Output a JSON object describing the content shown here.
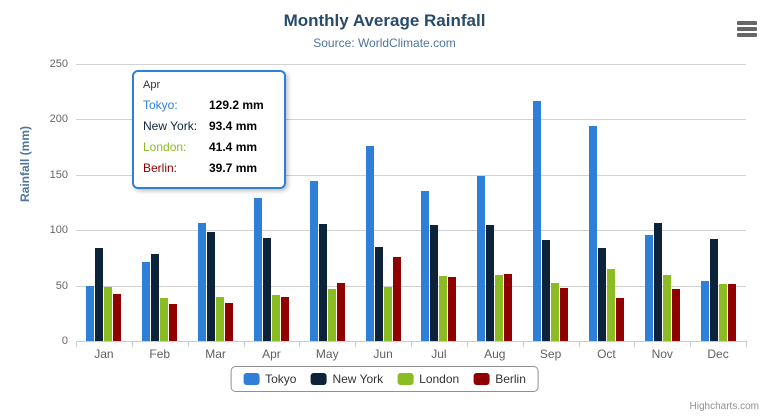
{
  "chart": {
    "title": "Monthly Average Rainfall",
    "subtitle": "Source: WorldClimate.com",
    "credits": "Highcharts.com",
    "export_icon": "hamburger-menu-icon"
  },
  "chart_data": {
    "type": "bar",
    "title": "Monthly Average Rainfall",
    "subtitle": "Source: WorldClimate.com",
    "categories": [
      "Jan",
      "Feb",
      "Mar",
      "Apr",
      "May",
      "Jun",
      "Jul",
      "Aug",
      "Sep",
      "Oct",
      "Nov",
      "Dec"
    ],
    "series": [
      {
        "name": "Tokyo",
        "color": "#2f7ed8",
        "values": [
          49.9,
          71.5,
          106.4,
          129.2,
          144.0,
          176.0,
          135.6,
          148.5,
          216.4,
          194.1,
          95.6,
          54.4
        ]
      },
      {
        "name": "New York",
        "color": "#0d233a",
        "values": [
          83.6,
          78.8,
          98.5,
          93.4,
          106.0,
          84.5,
          105.0,
          104.3,
          91.2,
          83.5,
          106.6,
          92.3
        ]
      },
      {
        "name": "London",
        "color": "#8bbc21",
        "values": [
          48.9,
          38.8,
          39.3,
          41.4,
          47.0,
          48.3,
          59.0,
          59.6,
          52.4,
          65.2,
          59.3,
          51.2
        ]
      },
      {
        "name": "Berlin",
        "color": "#910000",
        "values": [
          42.4,
          33.2,
          34.5,
          39.7,
          52.6,
          75.5,
          57.4,
          60.4,
          47.6,
          39.1,
          46.8,
          51.1
        ]
      }
    ],
    "xlabel": "",
    "ylabel": "Rainfall (mm)",
    "ylim": [
      0,
      250
    ],
    "yticks": [
      0,
      50,
      100,
      150,
      200,
      250
    ],
    "grid": true,
    "legend_position": "bottom"
  },
  "tooltip": {
    "header": "Apr",
    "rows": [
      {
        "label": "Tokyo:",
        "value": "129.2 mm",
        "color": "#2f7ed8"
      },
      {
        "label": "New York:",
        "value": "93.4 mm",
        "color": "#0d233a"
      },
      {
        "label": "London:",
        "value": "41.4 mm",
        "color": "#8bbc21"
      },
      {
        "label": "Berlin:",
        "value": "39.7 mm",
        "color": "#910000"
      }
    ]
  },
  "colors": {
    "title": "#274b6d",
    "subtitle": "#4d759e",
    "axis_label": "#666666",
    "gridline": "#d2d2d2",
    "axis_line": "#c0d0e0",
    "tooltip_border": "#2f7ed8"
  }
}
